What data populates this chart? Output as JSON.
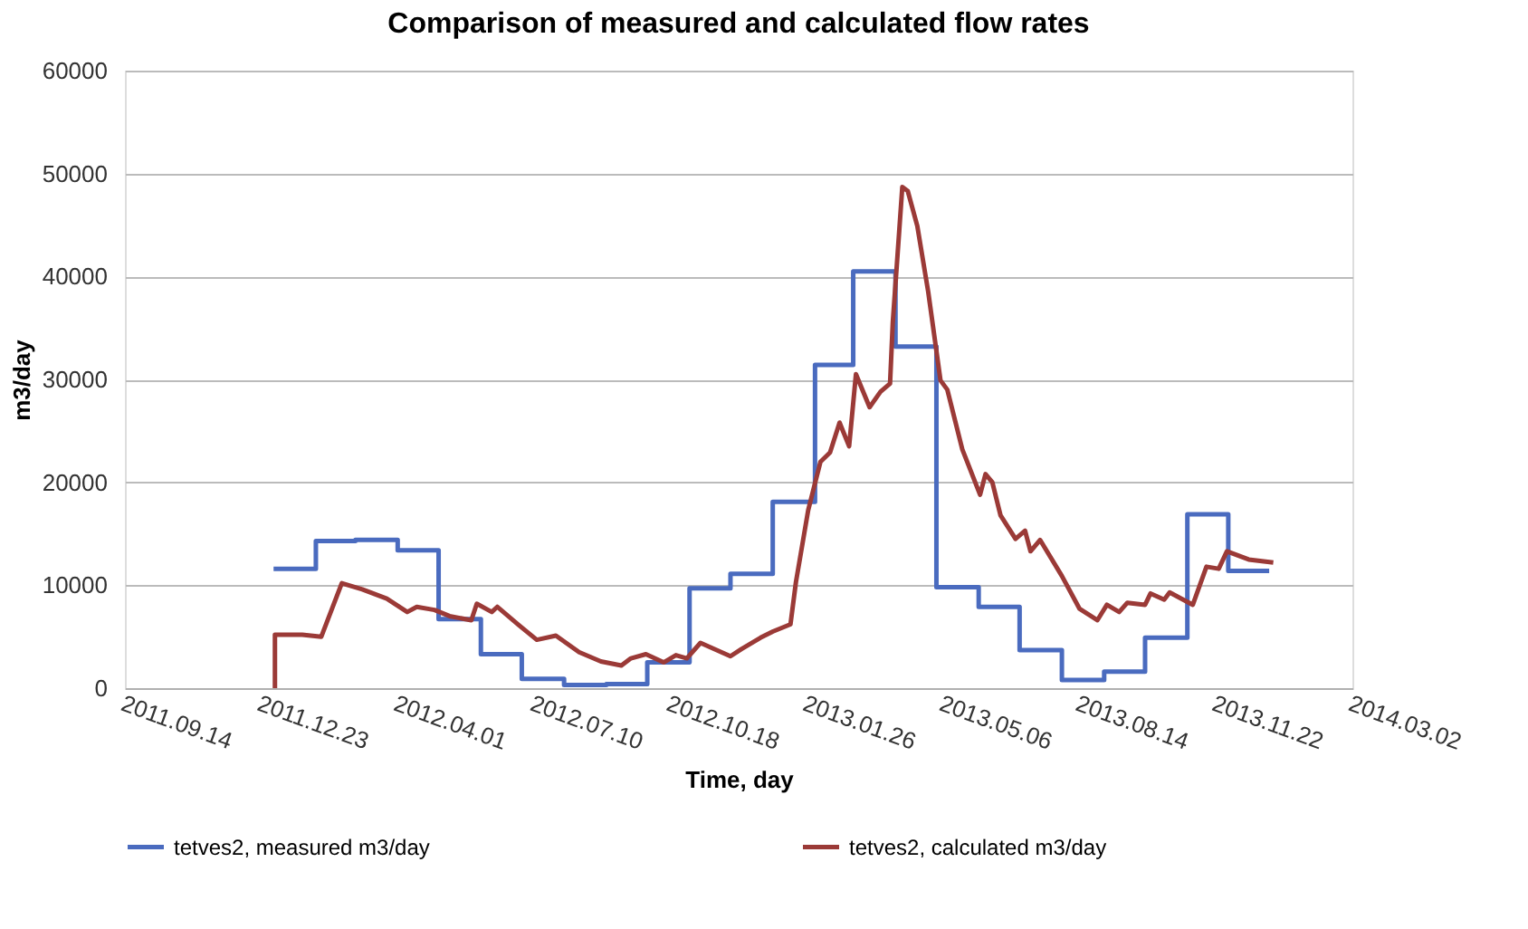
{
  "chart_data": {
    "type": "line",
    "title": "Comparison of measured and calculated flow rates",
    "xlabel": "Time, day",
    "ylabel": "m3/day",
    "xlim": [
      "2011-09-14",
      "2014-03-02"
    ],
    "xticks": [
      {
        "value": "2011-09-14",
        "label": "2011.09.14"
      },
      {
        "value": "2011-12-23",
        "label": "2011.12.23"
      },
      {
        "value": "2012-04-01",
        "label": "2012.04.01"
      },
      {
        "value": "2012-07-10",
        "label": "2012.07.10"
      },
      {
        "value": "2012-10-18",
        "label": "2012.10.18"
      },
      {
        "value": "2013-01-26",
        "label": "2013.01.26"
      },
      {
        "value": "2013-05-06",
        "label": "2013.05.06"
      },
      {
        "value": "2013-08-14",
        "label": "2013.08.14"
      },
      {
        "value": "2013-11-22",
        "label": "2013.11.22"
      },
      {
        "value": "2014-03-02",
        "label": "2014.03.02"
      }
    ],
    "ylim": [
      0,
      60000
    ],
    "yticks": [
      0,
      10000,
      20000,
      30000,
      40000,
      50000,
      60000
    ],
    "grid": "y",
    "legend": "bottom",
    "line_style": "solid",
    "marker": "none",
    "series": [
      {
        "name": "tetves2, measured m3/day",
        "color": "#4a6bbf",
        "type": "step",
        "x": [
          "2012-01-01",
          "2012-02-01",
          "2012-03-01",
          "2012-04-01",
          "2012-05-01",
          "2012-06-01",
          "2012-07-01",
          "2012-08-01",
          "2012-09-01",
          "2012-10-01",
          "2012-11-01",
          "2012-12-01",
          "2013-01-01",
          "2013-02-01",
          "2013-03-01",
          "2013-04-01",
          "2013-05-01",
          "2013-06-01",
          "2013-07-01",
          "2013-08-01",
          "2013-09-01",
          "2013-10-01",
          "2013-11-01",
          "2013-12-01",
          "2013-12-31"
        ],
        "values": [
          11600,
          14300,
          14400,
          13400,
          6700,
          3300,
          900,
          300,
          400,
          2500,
          9700,
          11100,
          18100,
          31400,
          40500,
          33200,
          9800,
          7900,
          3700,
          800,
          1600,
          4900,
          16900,
          11400,
          11400
        ]
      },
      {
        "name": "tetves2, calculated m3/day",
        "color": "#9b3a37",
        "x": [
          "2012-01-02",
          "2012-01-02",
          "2012-01-22",
          "2012-02-05",
          "2012-02-20",
          "2012-03-06",
          "2012-03-24",
          "2012-04-08",
          "2012-04-15",
          "2012-04-28",
          "2012-05-09",
          "2012-05-25",
          "2012-05-29",
          "2012-06-09",
          "2012-06-13",
          "2012-06-29",
          "2012-07-12",
          "2012-07-26",
          "2012-08-12",
          "2012-08-28",
          "2012-09-12",
          "2012-09-19",
          "2012-09-30",
          "2012-10-13",
          "2012-10-22",
          "2012-10-30",
          "2012-11-09",
          "2012-12-01",
          "2012-12-09",
          "2012-12-23",
          "2013-01-01",
          "2013-01-14",
          "2013-01-18",
          "2013-01-27",
          "2013-02-05",
          "2013-02-12",
          "2013-02-19",
          "2013-02-26",
          "2013-03-03",
          "2013-03-13",
          "2013-03-21",
          "2013-03-28",
          "2013-03-30",
          "2013-04-06",
          "2013-04-10",
          "2013-04-17",
          "2013-04-25",
          "2013-05-04",
          "2013-05-09",
          "2013-05-20",
          "2013-06-02",
          "2013-06-06",
          "2013-06-11",
          "2013-06-17",
          "2013-06-28",
          "2013-07-05",
          "2013-07-09",
          "2013-07-16",
          "2013-08-01",
          "2013-08-14",
          "2013-08-27",
          "2013-09-03",
          "2013-09-12",
          "2013-09-18",
          "2013-10-01",
          "2013-10-05",
          "2013-10-15",
          "2013-10-19",
          "2013-11-05",
          "2013-11-15",
          "2013-11-24",
          "2013-11-30",
          "2013-12-16",
          "2014-01-03"
        ],
        "values": [
          0,
          5200,
          5200,
          5000,
          10200,
          9600,
          8700,
          7400,
          7900,
          7600,
          7000,
          6600,
          8200,
          7400,
          7900,
          6100,
          4700,
          5100,
          3500,
          2600,
          2200,
          2900,
          3300,
          2500,
          3200,
          2900,
          4400,
          3100,
          3800,
          4900,
          5500,
          6200,
          10300,
          17300,
          22000,
          22900,
          25800,
          23500,
          30500,
          27300,
          28800,
          29600,
          35500,
          48700,
          48300,
          44900,
          38500,
          29900,
          29000,
          23200,
          18800,
          20800,
          20000,
          16800,
          14500,
          15300,
          13300,
          14400,
          10900,
          7700,
          6600,
          8100,
          7400,
          8300,
          8100,
          9200,
          8600,
          9300,
          8100,
          11800,
          11600,
          13300,
          12500,
          12200
        ]
      }
    ]
  }
}
